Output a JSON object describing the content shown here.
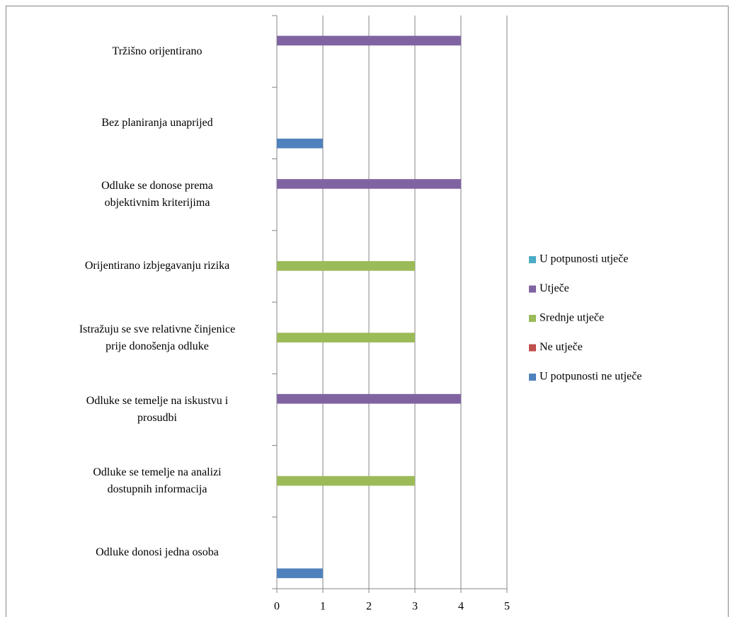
{
  "chart_data": {
    "type": "bar",
    "orientation": "horizontal",
    "categories": [
      "Odluke donosi jedna osoba",
      "Odluke se temelje na analizi\ndostupnih informacija",
      "Odluke se temelje na iskustvu i\nprosudbi",
      "Istražuju se sve relativne činjenice\nprije donošenja odluke",
      "Orijentirano izbjegavanju rizika",
      "Odluke se donose prema\nobjektivnim kriterijima",
      "Bez planiranja unaprijed",
      "Tržišno orijentirano"
    ],
    "series": [
      {
        "name": "U potpunosti ne utječe",
        "color": "#4f81bd",
        "values": [
          1,
          null,
          null,
          null,
          null,
          null,
          1,
          null
        ]
      },
      {
        "name": "Ne utječe",
        "color": "#c0504d",
        "values": [
          null,
          null,
          null,
          null,
          null,
          null,
          null,
          null
        ]
      },
      {
        "name": "Srednje utječe",
        "color": "#9bbb59",
        "values": [
          null,
          3,
          null,
          3,
          3,
          null,
          null,
          null
        ]
      },
      {
        "name": "Utječe",
        "color": "#8064a2",
        "values": [
          null,
          null,
          4,
          null,
          null,
          4,
          null,
          4
        ]
      },
      {
        "name": "U potpunosti utječe",
        "color": "#4bacc6",
        "values": [
          null,
          null,
          null,
          null,
          null,
          null,
          null,
          null
        ]
      }
    ],
    "xlim": [
      0,
      5
    ],
    "xticks": [
      0,
      1,
      2,
      3,
      4,
      5
    ],
    "grid": true,
    "legend": "right"
  }
}
